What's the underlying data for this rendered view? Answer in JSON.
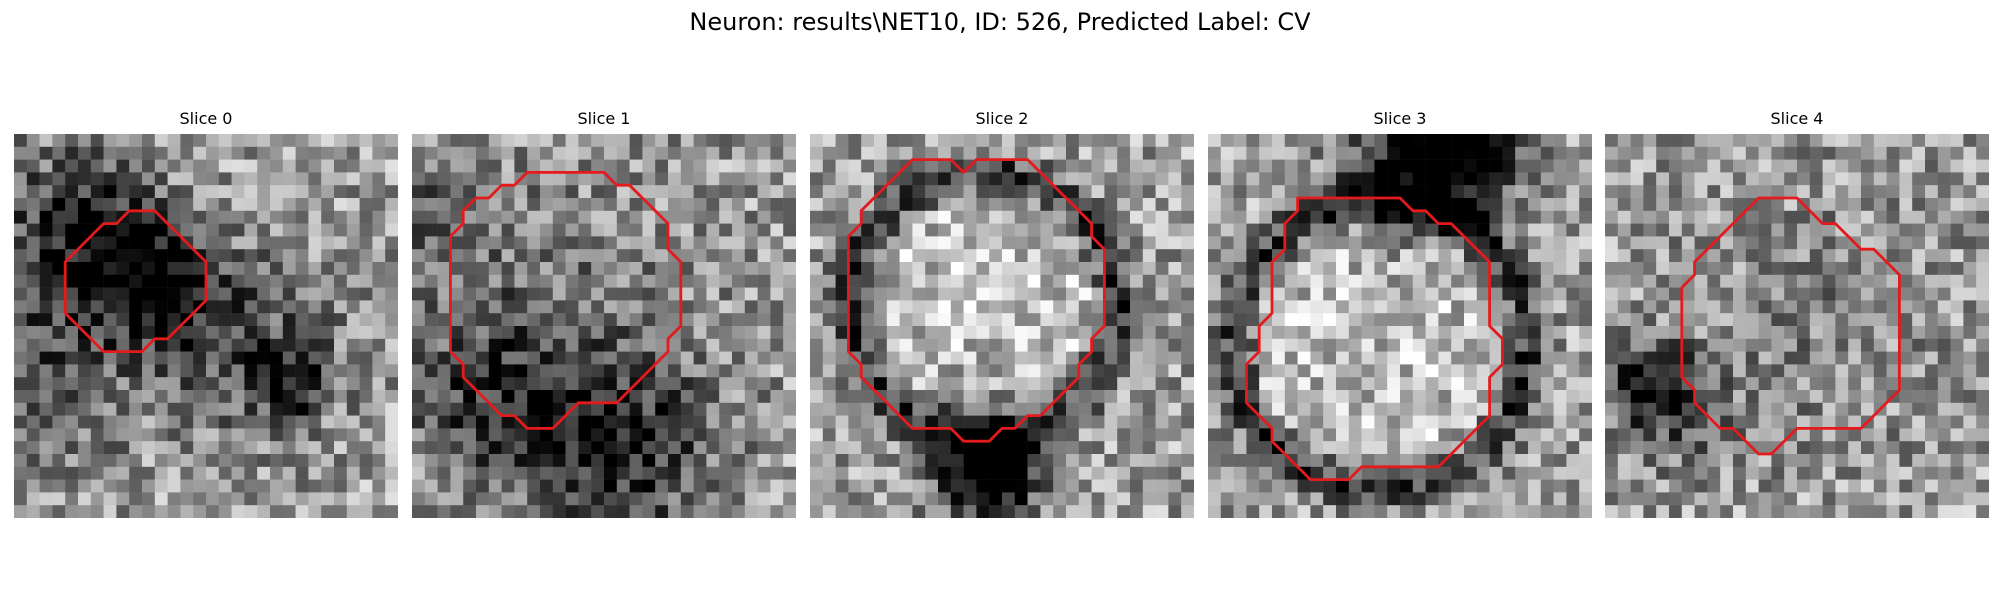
{
  "figure": {
    "title": "Neuron: results\\NET10, ID: 526, Predicted Label: CV"
  },
  "panels": [
    {
      "title": "Slice 0",
      "image_name": "grayscale-microscopy-patch",
      "contour_color": "#e41a1c",
      "contour": [
        [
          10,
          6
        ],
        [
          11,
          6
        ],
        [
          12,
          7
        ],
        [
          13,
          8
        ],
        [
          14,
          9
        ],
        [
          15,
          10
        ],
        [
          15,
          11
        ],
        [
          15,
          12
        ],
        [
          15,
          13
        ],
        [
          14,
          14
        ],
        [
          13,
          15
        ],
        [
          12,
          16
        ],
        [
          11,
          16
        ],
        [
          10,
          17
        ],
        [
          9,
          17
        ],
        [
          8,
          17
        ],
        [
          7,
          17
        ],
        [
          6,
          16
        ],
        [
          5,
          15
        ],
        [
          4,
          14
        ],
        [
          4,
          13
        ],
        [
          4,
          12
        ],
        [
          4,
          11
        ],
        [
          4,
          10
        ],
        [
          5,
          9
        ],
        [
          6,
          8
        ],
        [
          7,
          7
        ],
        [
          8,
          7
        ],
        [
          9,
          6
        ]
      ],
      "texture_seed": 11,
      "darkness": [
        [
          [
            8,
            9
          ],
          4,
          0.35
        ],
        [
          [
            11,
            12
          ],
          3,
          0.45
        ],
        [
          [
            4,
            6
          ],
          4,
          0.35
        ],
        [
          [
            0,
            18
          ],
          6,
          0.3
        ],
        [
          [
            18,
            16
          ],
          5,
          0.3
        ],
        [
          [
            21,
            19
          ],
          2,
          0.4
        ]
      ]
    },
    {
      "title": "Slice 1",
      "image_name": "grayscale-microscopy-patch",
      "contour_color": "#e41a1c",
      "contour": [
        [
          7,
          4
        ],
        [
          8,
          4
        ],
        [
          9,
          3
        ],
        [
          10,
          3
        ],
        [
          11,
          3
        ],
        [
          12,
          3
        ],
        [
          13,
          3
        ],
        [
          14,
          3
        ],
        [
          15,
          3
        ],
        [
          16,
          4
        ],
        [
          17,
          4
        ],
        [
          18,
          5
        ],
        [
          19,
          6
        ],
        [
          20,
          7
        ],
        [
          20,
          8
        ],
        [
          20,
          9
        ],
        [
          21,
          10
        ],
        [
          21,
          11
        ],
        [
          21,
          12
        ],
        [
          21,
          13
        ],
        [
          21,
          14
        ],
        [
          21,
          15
        ],
        [
          20,
          16
        ],
        [
          20,
          17
        ],
        [
          19,
          18
        ],
        [
          18,
          19
        ],
        [
          17,
          20
        ],
        [
          16,
          21
        ],
        [
          15,
          21
        ],
        [
          14,
          21
        ],
        [
          13,
          21
        ],
        [
          12,
          22
        ],
        [
          11,
          23
        ],
        [
          10,
          23
        ],
        [
          9,
          23
        ],
        [
          8,
          22
        ],
        [
          7,
          22
        ],
        [
          6,
          21
        ],
        [
          5,
          20
        ],
        [
          4,
          19
        ],
        [
          4,
          18
        ],
        [
          3,
          17
        ],
        [
          3,
          16
        ],
        [
          3,
          15
        ],
        [
          3,
          14
        ],
        [
          3,
          13
        ],
        [
          3,
          12
        ],
        [
          3,
          11
        ],
        [
          3,
          10
        ],
        [
          3,
          9
        ],
        [
          3,
          8
        ],
        [
          4,
          7
        ],
        [
          4,
          6
        ],
        [
          5,
          5
        ],
        [
          6,
          5
        ]
      ],
      "texture_seed": 23,
      "darkness": [
        [
          [
            12,
            12
          ],
          9,
          0.12
        ],
        [
          [
            6,
            20
          ],
          5,
          0.35
        ],
        [
          [
            16,
            24
          ],
          5,
          0.45
        ],
        [
          [
            0,
            6
          ],
          4,
          0.25
        ]
      ]
    },
    {
      "title": "Slice 2",
      "image_name": "grayscale-microscopy-patch",
      "contour_color": "#e41a1c",
      "contour": [
        [
          8,
          2
        ],
        [
          9,
          2
        ],
        [
          10,
          2
        ],
        [
          11,
          2
        ],
        [
          12,
          3
        ],
        [
          13,
          2
        ],
        [
          14,
          2
        ],
        [
          15,
          2
        ],
        [
          16,
          2
        ],
        [
          17,
          2
        ],
        [
          18,
          3
        ],
        [
          19,
          4
        ],
        [
          20,
          5
        ],
        [
          21,
          6
        ],
        [
          22,
          7
        ],
        [
          22,
          8
        ],
        [
          23,
          9
        ],
        [
          23,
          10
        ],
        [
          23,
          11
        ],
        [
          23,
          12
        ],
        [
          23,
          13
        ],
        [
          23,
          14
        ],
        [
          23,
          15
        ],
        [
          22,
          16
        ],
        [
          22,
          17
        ],
        [
          21,
          18
        ],
        [
          21,
          19
        ],
        [
          20,
          20
        ],
        [
          19,
          21
        ],
        [
          18,
          22
        ],
        [
          17,
          22
        ],
        [
          16,
          23
        ],
        [
          15,
          23
        ],
        [
          14,
          24
        ],
        [
          13,
          24
        ],
        [
          12,
          24
        ],
        [
          11,
          23
        ],
        [
          10,
          23
        ],
        [
          9,
          23
        ],
        [
          8,
          23
        ],
        [
          7,
          22
        ],
        [
          6,
          21
        ],
        [
          5,
          20
        ],
        [
          4,
          19
        ],
        [
          4,
          18
        ],
        [
          3,
          17
        ],
        [
          3,
          16
        ],
        [
          3,
          15
        ],
        [
          3,
          14
        ],
        [
          3,
          13
        ],
        [
          3,
          12
        ],
        [
          3,
          11
        ],
        [
          3,
          10
        ],
        [
          3,
          9
        ],
        [
          3,
          8
        ],
        [
          4,
          7
        ],
        [
          4,
          6
        ],
        [
          5,
          5
        ],
        [
          6,
          4
        ],
        [
          7,
          3
        ]
      ],
      "texture_seed": 37,
      "ring": [
        [
          13,
          13
        ],
        10.5,
        0.4
      ],
      "darkness": [
        [
          [
            13,
            25
          ],
          3,
          0.55
        ],
        [
          [
            14,
            26
          ],
          2,
          0.5
        ]
      ]
    },
    {
      "title": "Slice 3",
      "image_name": "grayscale-microscopy-patch",
      "contour_color": "#e41a1c",
      "contour": [
        [
          7,
          5
        ],
        [
          8,
          5
        ],
        [
          9,
          5
        ],
        [
          10,
          5
        ],
        [
          11,
          5
        ],
        [
          12,
          5
        ],
        [
          13,
          5
        ],
        [
          14,
          5
        ],
        [
          15,
          5
        ],
        [
          16,
          6
        ],
        [
          17,
          6
        ],
        [
          18,
          7
        ],
        [
          19,
          7
        ],
        [
          20,
          8
        ],
        [
          21,
          9
        ],
        [
          22,
          10
        ],
        [
          22,
          11
        ],
        [
          22,
          12
        ],
        [
          22,
          13
        ],
        [
          22,
          14
        ],
        [
          22,
          15
        ],
        [
          23,
          16
        ],
        [
          23,
          17
        ],
        [
          23,
          18
        ],
        [
          22,
          19
        ],
        [
          22,
          20
        ],
        [
          22,
          21
        ],
        [
          22,
          22
        ],
        [
          21,
          23
        ],
        [
          20,
          24
        ],
        [
          19,
          25
        ],
        [
          18,
          26
        ],
        [
          17,
          26
        ],
        [
          16,
          26
        ],
        [
          15,
          26
        ],
        [
          14,
          26
        ],
        [
          13,
          26
        ],
        [
          12,
          26
        ],
        [
          11,
          27
        ],
        [
          10,
          27
        ],
        [
          9,
          27
        ],
        [
          8,
          27
        ],
        [
          7,
          26
        ],
        [
          6,
          25
        ],
        [
          5,
          24
        ],
        [
          5,
          23
        ],
        [
          4,
          22
        ],
        [
          3,
          21
        ],
        [
          3,
          20
        ],
        [
          3,
          19
        ],
        [
          3,
          18
        ],
        [
          4,
          17
        ],
        [
          4,
          16
        ],
        [
          4,
          15
        ],
        [
          5,
          14
        ],
        [
          5,
          13
        ],
        [
          5,
          12
        ],
        [
          5,
          11
        ],
        [
          5,
          10
        ],
        [
          6,
          9
        ],
        [
          6,
          8
        ],
        [
          6,
          7
        ],
        [
          7,
          6
        ]
      ],
      "texture_seed": 53,
      "ring": [
        [
          13,
          16
        ],
        11.5,
        0.4
      ],
      "darkness": [
        [
          [
            16,
            2
          ],
          4,
          0.55
        ],
        [
          [
            20,
            1
          ],
          3,
          0.45
        ]
      ]
    },
    {
      "title": "Slice 4",
      "image_name": "grayscale-microscopy-patch",
      "contour_color": "#e41a1c",
      "contour": [
        [
          12,
          5
        ],
        [
          13,
          5
        ],
        [
          14,
          5
        ],
        [
          15,
          5
        ],
        [
          16,
          6
        ],
        [
          17,
          7
        ],
        [
          18,
          7
        ],
        [
          19,
          8
        ],
        [
          20,
          9
        ],
        [
          21,
          9
        ],
        [
          22,
          10
        ],
        [
          23,
          11
        ],
        [
          23,
          12
        ],
        [
          23,
          13
        ],
        [
          23,
          14
        ],
        [
          23,
          15
        ],
        [
          23,
          16
        ],
        [
          23,
          17
        ],
        [
          23,
          18
        ],
        [
          23,
          19
        ],
        [
          23,
          20
        ],
        [
          22,
          21
        ],
        [
          21,
          22
        ],
        [
          20,
          23
        ],
        [
          19,
          23
        ],
        [
          18,
          23
        ],
        [
          17,
          23
        ],
        [
          16,
          23
        ],
        [
          15,
          23
        ],
        [
          14,
          24
        ],
        [
          13,
          25
        ],
        [
          12,
          25
        ],
        [
          11,
          24
        ],
        [
          10,
          23
        ],
        [
          9,
          23
        ],
        [
          8,
          22
        ],
        [
          7,
          21
        ],
        [
          7,
          20
        ],
        [
          6,
          19
        ],
        [
          6,
          18
        ],
        [
          6,
          17
        ],
        [
          6,
          16
        ],
        [
          6,
          15
        ],
        [
          6,
          14
        ],
        [
          6,
          13
        ],
        [
          6,
          12
        ],
        [
          7,
          11
        ],
        [
          7,
          10
        ],
        [
          8,
          9
        ],
        [
          9,
          8
        ],
        [
          10,
          7
        ],
        [
          11,
          6
        ]
      ],
      "texture_seed": 71,
      "darkness": [
        [
          [
            15,
            14
          ],
          8,
          0.1
        ],
        [
          [
            3,
            19
          ],
          2,
          0.45
        ],
        [
          [
            5,
            21
          ],
          3,
          0.3
        ]
      ]
    }
  ]
}
